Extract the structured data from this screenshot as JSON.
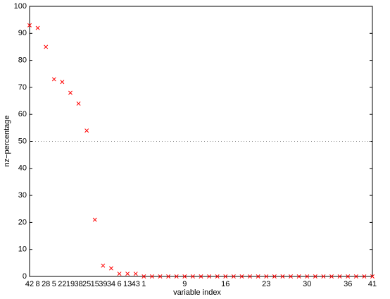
{
  "chart_data": {
    "type": "scatter",
    "xlabel": "variable index",
    "ylabel": "nz−percentage",
    "categories": [
      "42",
      "8",
      "28",
      "5",
      "22",
      "19",
      "38",
      "25",
      "15",
      "39",
      "34",
      "6",
      "13",
      "43",
      "1",
      null,
      null,
      null,
      null,
      "9",
      null,
      null,
      null,
      null,
      "16",
      null,
      null,
      null,
      null,
      "23",
      null,
      null,
      null,
      null,
      "30",
      null,
      null,
      null,
      null,
      "36",
      null,
      null,
      "41"
    ],
    "values": [
      93,
      92,
      85,
      73,
      72,
      68,
      64,
      54,
      21,
      4,
      3,
      1,
      1,
      1,
      0,
      0,
      0,
      0,
      0,
      0,
      0,
      0,
      0,
      0,
      0,
      0,
      0,
      0,
      0,
      0,
      0,
      0,
      0,
      0,
      0,
      0,
      0,
      0,
      0,
      0,
      0,
      0,
      0
    ],
    "color": "#ff0000",
    "ylim": [
      0,
      100
    ],
    "yticks": [
      0,
      10,
      20,
      30,
      40,
      50,
      60,
      70,
      80,
      90,
      100
    ],
    "reference_line": 50
  }
}
